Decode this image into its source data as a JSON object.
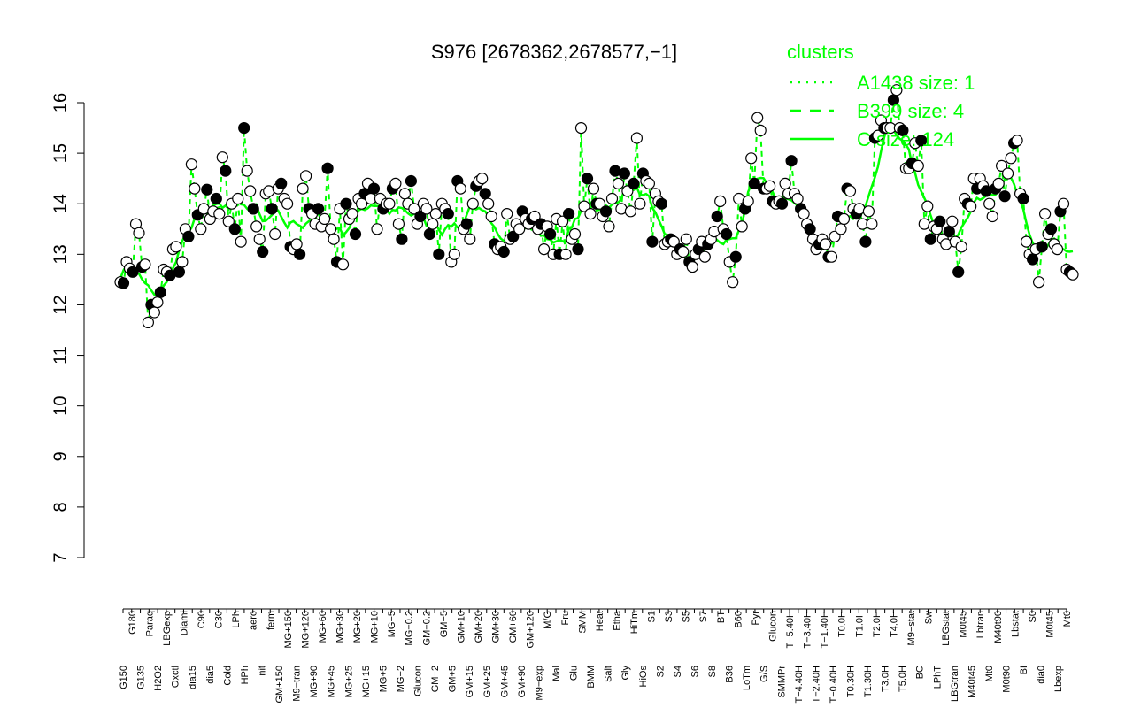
{
  "chart_data": {
    "type": "line",
    "title": "S976 [2678362,2678577,−1]",
    "xlabel": "",
    "ylabel": "",
    "ylim": [
      7,
      16
    ],
    "y_ticks": [
      7,
      8,
      9,
      10,
      11,
      12,
      13,
      14,
      15,
      16
    ],
    "x_tick_labels": [
      "G150",
      "G180",
      "G135",
      "Paraq",
      "H2O2",
      "LBGexp",
      "Oxctl",
      "Diami",
      "dia15",
      "C90",
      "dia5",
      "C30",
      "Cold",
      "LPh",
      "HPh",
      "aero",
      "nit",
      "ferm",
      "GM+150",
      "MG+150",
      "M9−tran",
      "MG+120",
      "MG+90",
      "MG+60",
      "MG+45",
      "MG+30",
      "MG+25",
      "MG+20",
      "MG+15",
      "MG+10",
      "MG+5",
      "MG−5",
      "MG−2",
      "MG−0.2",
      "Glucon",
      "GM−0.2",
      "GM−2",
      "GM−5",
      "GM+5",
      "GM+10",
      "GM+15",
      "GM+20",
      "GM+25",
      "GM+30",
      "GM+45",
      "GM+60",
      "GM+90",
      "GM+120",
      "M9−exp",
      "M/G",
      "Mal",
      "Fru",
      "Glu",
      "SMM",
      "BMM",
      "Heat",
      "Salt",
      "Etha",
      "Gly",
      "HiTm",
      "HiOs",
      "S1",
      "S2",
      "S3",
      "S4",
      "S5",
      "S6",
      "S7",
      "S8",
      "BT",
      "B36",
      "B60",
      "LoTm",
      "Pyr",
      "G/S",
      "Glucon",
      "SMMPr",
      "T−5.40H",
      "T−4.40H",
      "T−3.40H",
      "T−2.40H",
      "T−1.40H",
      "T−0.40H",
      "T0.0H",
      "T0.30H",
      "T1.0H",
      "T1.30H",
      "T2.0H",
      "T3.0H",
      "T4.0H",
      "T5.0H",
      "M9−stat",
      "BC",
      "Sw",
      "LPhT",
      "LBGstat",
      "LBGtran",
      "M0t45",
      "M40t45",
      "Lbtran",
      "Mt0",
      "M40t90",
      "M0t90",
      "Lbstat",
      "BI",
      "S0",
      "dia0",
      "M0t45",
      "Lbexp",
      "Mt0"
    ],
    "series": [
      {
        "name": "",
        "style": "points",
        "values": [
          12.45,
          12.43,
          12.85,
          12.72,
          12.65,
          13.6,
          13.42,
          12.75,
          12.8,
          11.65,
          12.0,
          11.85,
          12.05,
          12.25,
          12.7,
          12.65,
          12.58,
          13.1,
          13.15,
          12.65,
          12.85,
          13.5,
          13.35,
          14.78,
          14.3,
          13.78,
          13.5,
          13.9,
          14.28,
          13.7,
          13.85,
          14.1,
          13.8,
          14.92,
          14.65,
          13.65,
          14.0,
          13.5,
          14.1,
          13.25,
          15.5,
          14.65,
          14.25,
          13.9,
          13.55,
          13.3,
          13.05,
          14.2,
          14.25,
          13.9,
          13.4,
          14.3,
          14.4,
          14.1,
          14.0,
          13.15,
          13.1,
          13.2,
          13.0,
          14.3,
          14.55,
          13.9,
          13.8,
          13.6,
          13.9,
          13.55,
          13.7,
          14.7,
          13.5,
          13.3,
          12.85,
          13.9,
          12.8,
          14.0,
          13.7,
          13.8,
          13.4,
          14.1,
          14.0,
          14.2,
          14.4,
          14.1,
          14.3,
          13.5,
          14.1,
          13.9,
          14.0,
          14.0,
          14.3,
          14.4,
          13.6,
          13.3,
          14.2,
          14.0,
          14.45,
          13.9,
          13.6,
          13.75,
          14.0,
          13.9,
          13.4,
          13.6,
          13.8,
          13.0,
          14.0,
          13.9,
          13.8,
          12.85,
          13.0,
          14.45,
          14.3,
          13.5,
          13.6,
          13.3,
          14.0,
          14.35,
          14.45,
          14.5,
          14.2,
          14.0,
          13.75,
          13.2,
          13.1,
          13.15,
          13.05,
          13.8,
          13.3,
          13.35,
          13.6,
          13.5,
          13.85,
          13.7,
          13.6,
          13.7,
          13.75,
          13.5,
          13.6,
          13.1,
          13.55,
          13.4,
          13.0,
          13.7,
          13.0,
          13.65,
          13.0,
          13.8,
          13.3,
          13.4,
          13.1,
          15.5,
          13.95,
          14.5,
          13.8,
          14.3,
          14.0,
          14.0,
          13.75,
          13.85,
          13.55,
          14.1,
          14.65,
          14.4,
          13.9,
          14.6,
          14.25,
          13.85,
          14.4,
          15.3,
          14.0,
          14.6,
          14.45,
          14.4,
          13.25,
          14.2,
          14.05,
          14.0,
          13.2,
          13.25,
          13.3,
          13.25,
          13.0,
          13.1,
          13.05,
          13.3,
          12.85,
          12.75,
          13.0,
          13.1,
          13.25,
          12.95,
          13.2,
          13.3,
          13.45,
          13.75,
          14.05,
          13.5,
          13.4,
          12.85,
          12.45,
          12.95,
          14.1,
          13.55,
          13.9,
          14.05,
          14.9,
          14.4,
          15.7,
          15.45,
          14.3,
          14.3,
          14.35,
          14.05,
          14.0,
          14.05,
          14.0,
          14.4,
          14.2,
          14.85,
          14.2,
          14.1,
          13.9,
          13.8,
          13.6,
          13.5,
          13.3,
          13.1,
          13.2,
          13.3,
          13.2,
          12.95,
          12.95,
          13.35,
          13.75,
          13.5,
          13.7,
          14.3,
          14.25,
          13.9,
          13.8,
          13.9,
          13.6,
          13.25,
          13.85,
          13.6,
          15.3,
          15.35,
          15.65,
          15.5,
          15.5,
          15.5,
          16.05,
          16.25,
          15.5,
          15.45,
          14.7,
          14.7,
          14.8,
          15.2,
          14.75,
          15.25,
          13.6,
          13.95,
          13.3,
          13.55,
          13.5,
          13.65,
          13.3,
          13.2,
          13.45,
          13.65,
          13.25,
          12.65,
          13.15,
          14.1,
          14.0,
          13.95,
          14.5,
          14.3,
          14.5,
          14.35,
          14.25,
          14.0,
          13.75,
          14.3,
          14.4,
          14.75,
          14.15,
          14.6,
          14.9,
          15.2,
          15.25,
          14.2,
          14.1,
          13.25,
          13.0,
          12.9,
          13.1,
          12.45,
          13.15,
          13.8,
          13.4,
          13.5,
          13.2,
          13.1,
          13.85,
          14.0,
          12.7,
          12.65,
          12.6
        ]
      },
      {
        "name": "A1438 size: 1",
        "style": "dotted"
      },
      {
        "name": "B399 size: 4",
        "style": "dashed"
      },
      {
        "name": "C size: 124",
        "style": "solid"
      }
    ],
    "legend": {
      "title": "clusters",
      "position": "top-right",
      "color": "#00ff00"
    },
    "grid": false
  }
}
